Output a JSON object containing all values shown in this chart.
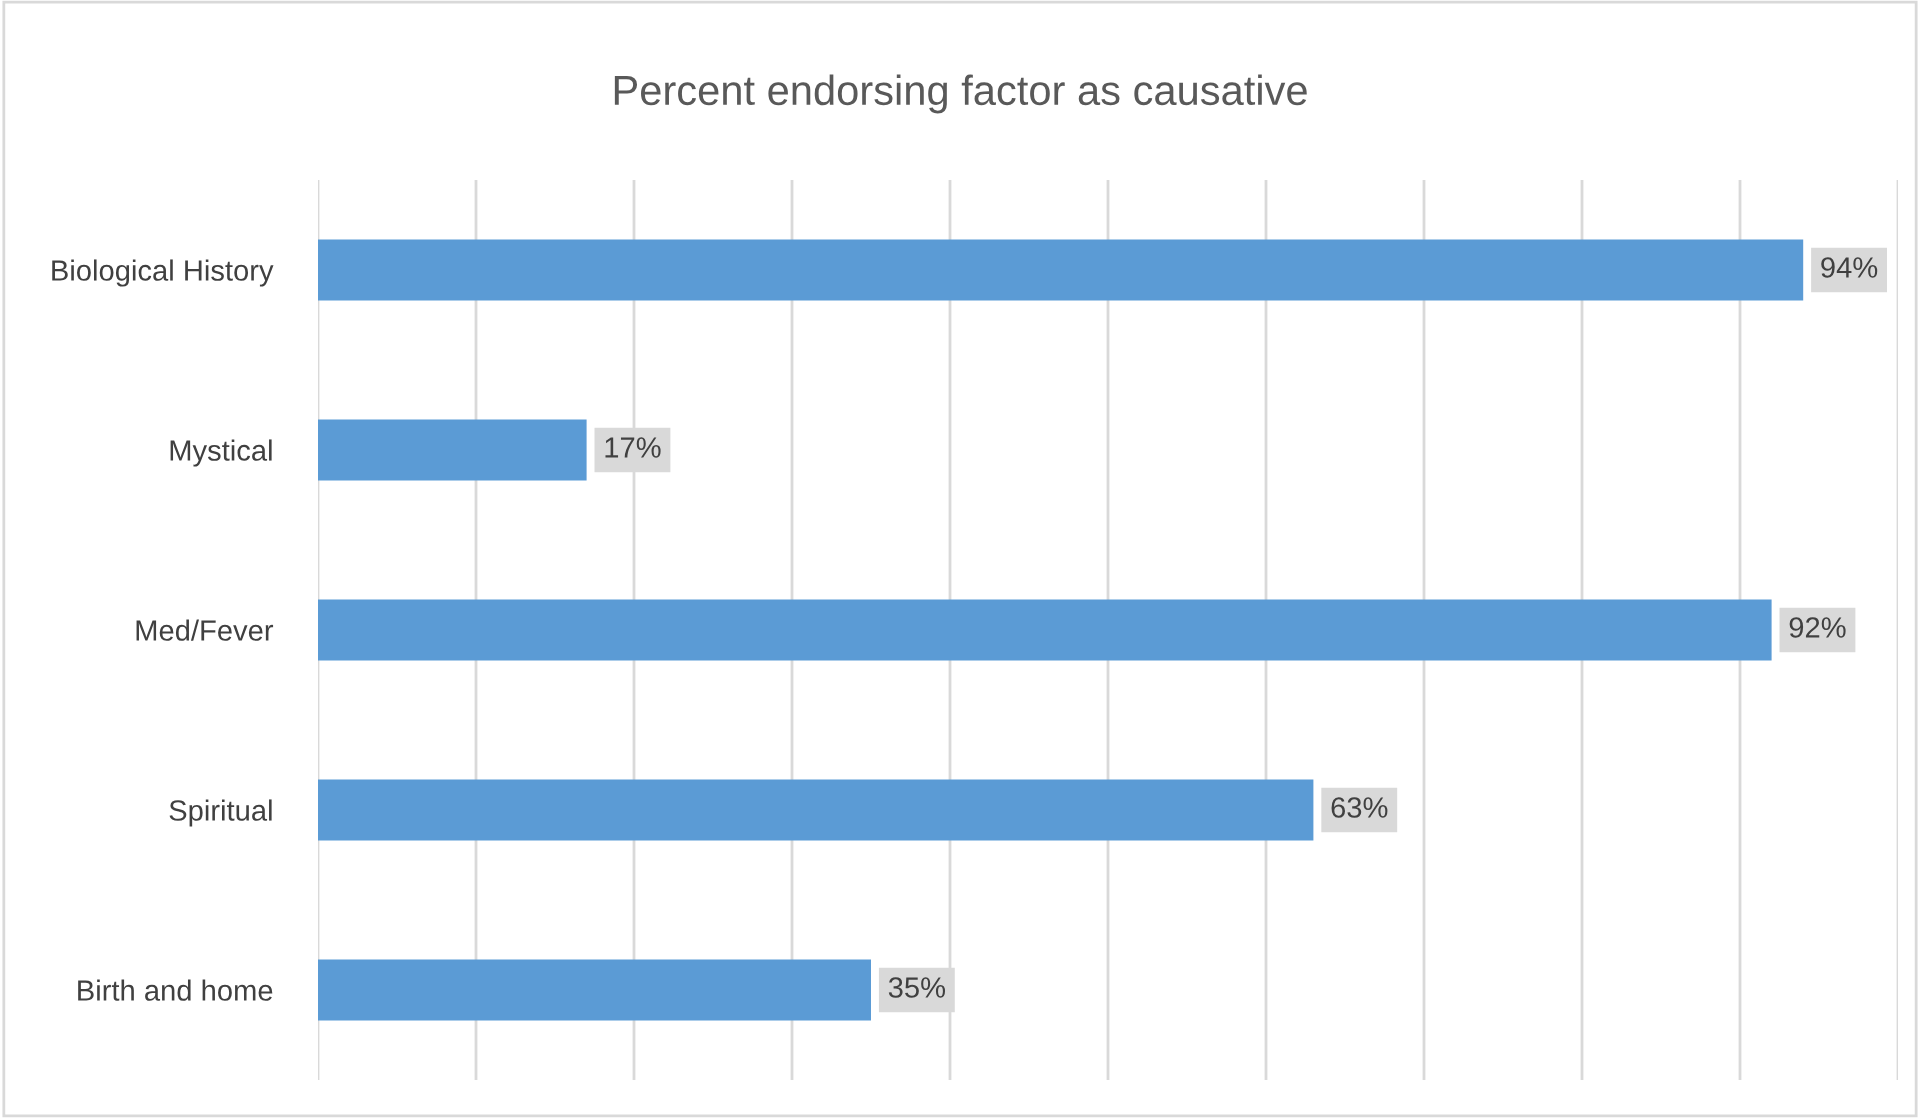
{
  "chart_data": {
    "type": "bar",
    "orientation": "horizontal",
    "title": "Percent endorsing factor as causative",
    "categories": [
      "Biological History",
      "Mystical",
      "Med/Fever",
      "Spiritual",
      "Birth and home"
    ],
    "values": [
      94,
      17,
      92,
      63,
      35
    ],
    "color": "#5b9bd5",
    "value_labels": [
      "94%",
      "17%",
      "92%",
      "63%",
      "35%"
    ],
    "xlim": [
      0,
      100
    ],
    "xticks": [
      {
        "value": 0,
        "label": null
      },
      {
        "value": 10,
        "label": null
      },
      {
        "value": 20,
        "label": null
      },
      {
        "value": 30,
        "label": null
      },
      {
        "value": 40,
        "label": null
      },
      {
        "value": 50,
        "label": null
      },
      {
        "value": 60,
        "label": null
      },
      {
        "value": 70,
        "label": null
      },
      {
        "value": 80,
        "label": null
      },
      {
        "value": 90,
        "label": null
      },
      {
        "value": 100,
        "label": null
      }
    ],
    "tick_labels": "y",
    "grid": "x",
    "legend": false
  }
}
